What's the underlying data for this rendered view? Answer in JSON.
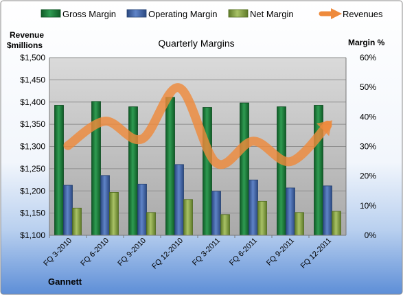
{
  "company": "Gannett",
  "chart_data": {
    "type": "bar",
    "title": "Quarterly Margins",
    "categories": [
      "FQ 3-2010",
      "FQ 6-2010",
      "FQ 9-2010",
      "FQ 12-2010",
      "FQ 3-2011",
      "FQ 6-2011",
      "FQ 9-2011",
      "FQ 12-2011"
    ],
    "series": [
      {
        "name": "Gross Margin",
        "type": "bar",
        "axis": "right",
        "color": "#1e7a3a",
        "values": [
          43.9,
          45.2,
          43.4,
          46.6,
          43.2,
          44.7,
          43.4,
          43.9
        ]
      },
      {
        "name": "Operating Margin",
        "type": "bar",
        "axis": "right",
        "color": "#3f62a4",
        "values": [
          16.9,
          20.2,
          17.3,
          23.9,
          14.9,
          18.7,
          16.0,
          16.7
        ]
      },
      {
        "name": "Net Margin",
        "type": "bar",
        "axis": "right",
        "color": "#8ca848",
        "values": [
          9.2,
          14.5,
          7.7,
          12.1,
          7.0,
          11.5,
          7.7,
          8.1
        ]
      },
      {
        "name": "Revenues",
        "type": "line",
        "axis": "left",
        "color": "#ee8a3c",
        "values": [
          1302,
          1357,
          1317,
          1432,
          1263,
          1312,
          1266,
          1348
        ]
      }
    ],
    "left_axis": {
      "label": [
        "Revenue",
        "$millions"
      ],
      "ylim": [
        1100,
        1500
      ],
      "ticks": [
        "$1,100",
        "$1,150",
        "$1,200",
        "$1,250",
        "$1,300",
        "$1,350",
        "$1,400",
        "$1,450",
        "$1,500"
      ]
    },
    "right_axis": {
      "label": "Margin %",
      "ylim": [
        0,
        60
      ],
      "ticks": [
        "0%",
        "10%",
        "20%",
        "30%",
        "40%",
        "50%",
        "60%"
      ]
    },
    "grid": true,
    "legend": "top"
  }
}
